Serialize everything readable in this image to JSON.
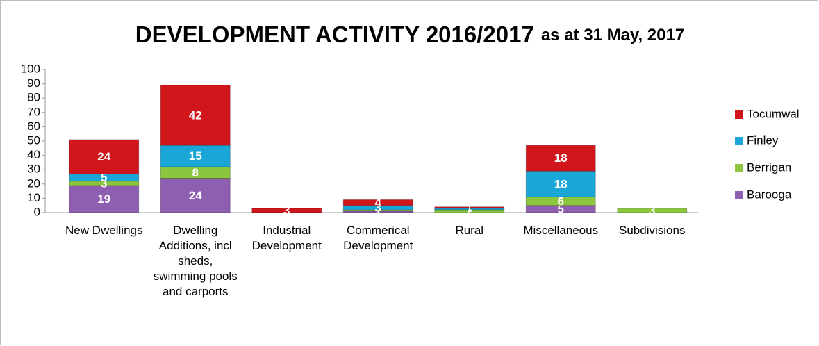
{
  "chart_data": {
    "type": "stacked_bar",
    "title": "DEVELOPMENT ACTIVITY 2016/2017",
    "subtitle": "as at 31 May, 2017",
    "categories": [
      "New Dwellings",
      "Dwelling Additions, incl sheds, swimming pools and carports",
      "Industrial Development",
      "Commerical Development",
      "Rural",
      "Miscellaneous",
      "Subdivisions"
    ],
    "series": [
      {
        "name": "Barooga",
        "color": "#8e5fb0",
        "values": [
          19,
          24,
          0,
          1,
          0,
          5,
          0
        ]
      },
      {
        "name": "Berrigan",
        "color": "#8cc63f",
        "values": [
          3,
          8,
          0,
          1,
          2,
          6,
          3
        ]
      },
      {
        "name": "Finley",
        "color": "#1ba6d8",
        "values": [
          5,
          15,
          0,
          3,
          1,
          18,
          0
        ]
      },
      {
        "name": "Tocumwal",
        "color": "#d0161b",
        "values": [
          24,
          42,
          3,
          4,
          1,
          18,
          0
        ]
      }
    ],
    "ylim": [
      0,
      100
    ],
    "yticks": [
      0,
      10,
      20,
      30,
      40,
      50,
      60,
      70,
      80,
      90,
      100
    ],
    "legend": "right"
  }
}
